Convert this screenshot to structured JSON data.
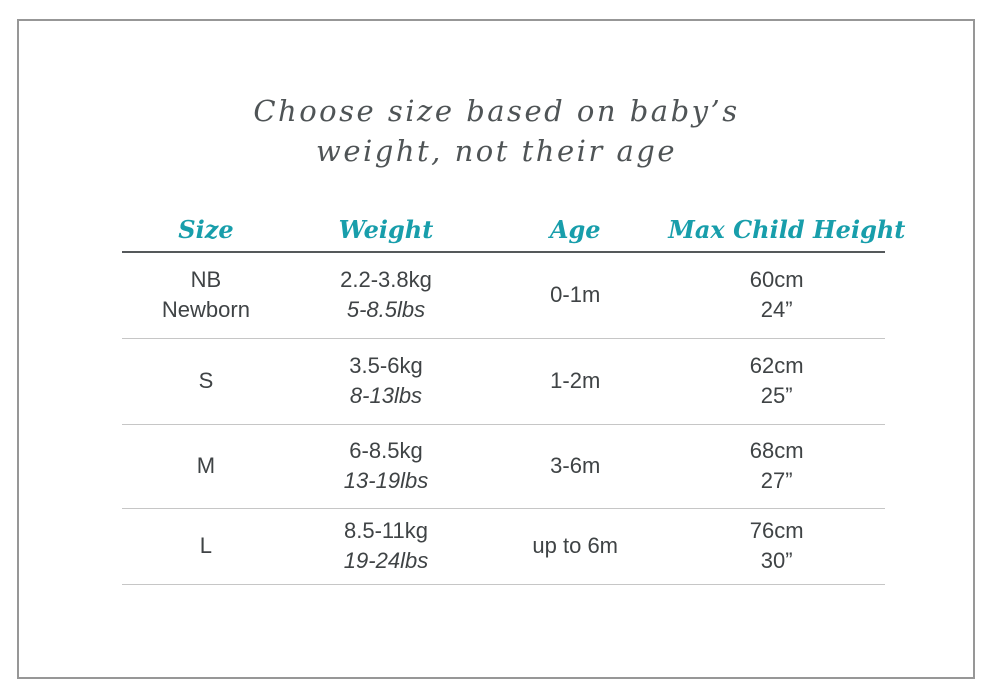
{
  "panel": {
    "title_line1": "Choose size based on baby’s",
    "title_line2": "weight, not their age"
  },
  "table": {
    "headers": {
      "size": "Size",
      "weight": "Weight",
      "age": "Age",
      "height": "Max Child Height"
    },
    "rows": [
      {
        "size": "NB",
        "size_alt": "Newborn",
        "weight_metric": "2.2-3.8kg",
        "weight_imperial": "5-8.5lbs",
        "age": "0-1m",
        "height_metric": "60cm",
        "height_imperial": "24”"
      },
      {
        "size": "S",
        "size_alt": "",
        "weight_metric": "3.5-6kg",
        "weight_imperial": "8-13lbs",
        "age": "1-2m",
        "height_metric": "62cm",
        "height_imperial": "25”"
      },
      {
        "size": "M",
        "size_alt": "",
        "weight_metric": "6-8.5kg",
        "weight_imperial": "13-19lbs",
        "age": "3-6m",
        "height_metric": "68cm",
        "height_imperial": "27”"
      },
      {
        "size": "L",
        "size_alt": "",
        "weight_metric": "8.5-11kg",
        "weight_imperial": "19-24lbs",
        "age": "up to 6m",
        "height_metric": "76cm",
        "height_imperial": "30”"
      }
    ]
  },
  "colors": {
    "accent_teal": "#189eab",
    "title_text": "#4f5456",
    "body_text": "#3f4345",
    "header_rule": "#55595b",
    "row_rule": "#c6c6c6",
    "frame_border": "#979797",
    "background": "#ffffff"
  }
}
